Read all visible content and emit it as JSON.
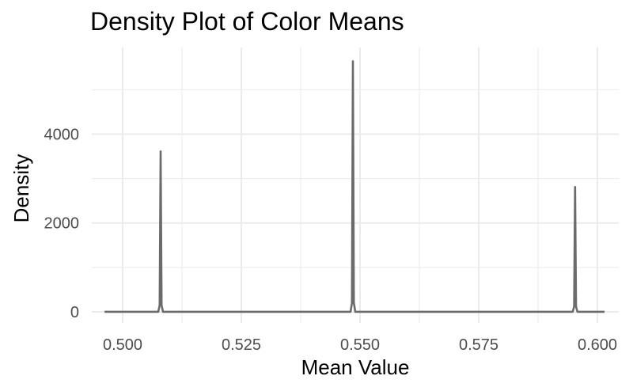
{
  "chart_data": {
    "type": "line",
    "title": "Density Plot of Color Means",
    "xlabel": "Mean Value",
    "ylabel": "Density",
    "xlim": [
      0.4935,
      0.6045
    ],
    "ylim": [
      -250,
      5950
    ],
    "x_ticks": [
      0.5,
      0.525,
      0.55,
      0.575,
      0.6
    ],
    "x_tick_labels": [
      "0.500",
      "0.525",
      "0.550",
      "0.575",
      "0.600"
    ],
    "x_minor_ticks": [
      0.5125,
      0.5375,
      0.5625,
      0.5875
    ],
    "y_ticks": [
      0,
      2000,
      4000
    ],
    "y_tick_labels": [
      "0",
      "2000",
      "4000"
    ],
    "y_minor_ticks": [
      1000,
      3000,
      5000
    ],
    "grid": true,
    "legend": "none",
    "line_color": "#6b6b6b",
    "grid_color": "#ebebeb",
    "series": [
      {
        "x": [
          0.4962,
          0.5075,
          0.5078,
          0.508,
          0.5082,
          0.5085,
          0.548,
          0.5483,
          0.5485,
          0.5487,
          0.549,
          0.5948,
          0.5951,
          0.5953,
          0.5955,
          0.5958,
          0.6015
        ],
        "y": [
          0,
          0,
          150,
          3610,
          150,
          0,
          0,
          200,
          5640,
          200,
          0,
          0,
          120,
          2810,
          120,
          0,
          0
        ]
      }
    ]
  }
}
